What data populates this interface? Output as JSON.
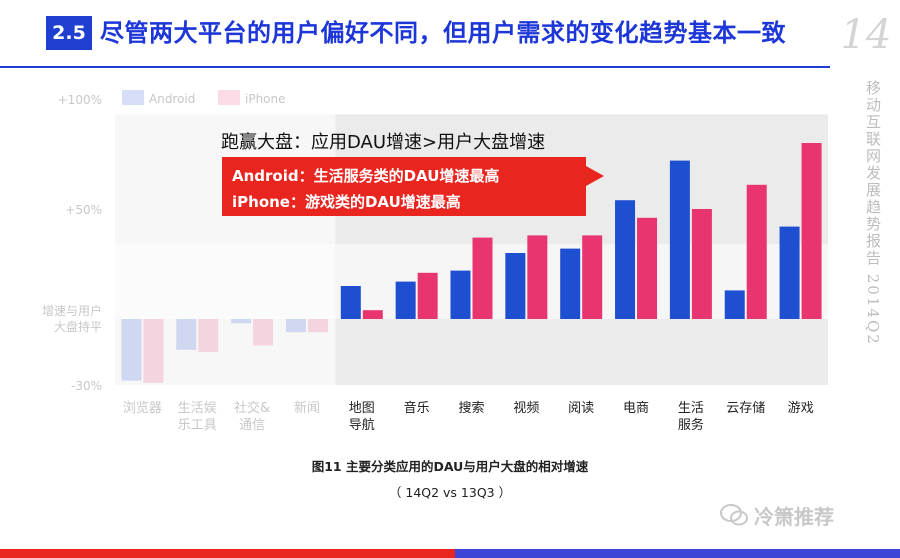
{
  "header": {
    "section_number": "2.5",
    "title": "尽管两大平台的用户偏好不同，但用户需求的变化趋势基本一致",
    "page_number": "14"
  },
  "side_text": "移动互联网发展趋势报告 2014Q2",
  "chart_data": {
    "type": "bar",
    "categories": [
      "浏览器",
      "生活娱乐工具",
      "社交&通信",
      "新闻",
      "地图导航",
      "音乐",
      "搜索",
      "视频",
      "阅读",
      "电商",
      "生活服务",
      "云存储",
      "游戏"
    ],
    "category_lines": [
      [
        "浏览器"
      ],
      [
        "生活娱",
        "乐工具"
      ],
      [
        "社交&",
        "通信"
      ],
      [
        "新闻"
      ],
      [
        "地图",
        "导航"
      ],
      [
        "音乐"
      ],
      [
        "搜索"
      ],
      [
        "视频"
      ],
      [
        "阅读"
      ],
      [
        "电商"
      ],
      [
        "生活",
        "服务"
      ],
      [
        "云存储"
      ],
      [
        "游戏"
      ]
    ],
    "series": [
      {
        "name": "Android",
        "color": "#1e4fd1",
        "values": [
          -28,
          -14,
          -2,
          -6,
          15,
          17,
          22,
          30,
          32,
          54,
          72,
          13,
          42
        ]
      },
      {
        "name": "iPhone",
        "color": "#e8356f",
        "values": [
          -29,
          -15,
          -12,
          -6,
          4,
          21,
          37,
          38,
          38,
          46,
          50,
          61,
          80
        ]
      }
    ],
    "y_ticks": [
      {
        "value": 100,
        "label": "+100%"
      },
      {
        "value": 50,
        "label": "+50%"
      },
      {
        "value": 0,
        "label": ""
      },
      {
        "value": -30,
        "label": "-30%"
      }
    ],
    "zero_label_lines": [
      "增速与用户",
      "大盘持平"
    ],
    "ylim": [
      -30,
      100
    ],
    "legend_position": "top-left",
    "highlight_categories_from": 4
  },
  "callout": {
    "heading": "跑赢大盘：应用DAU增速>用户大盘增速",
    "line1": "Android：生活服务类的DAU增速最高",
    "line2": "iPhone：游戏类的DAU增速最高"
  },
  "caption": {
    "line1": "图11 主要分类应用的DAU与用户大盘的相对增速",
    "line2": "（ 14Q2 vs 13Q3 ）"
  },
  "watermark": "冷箫推荐"
}
